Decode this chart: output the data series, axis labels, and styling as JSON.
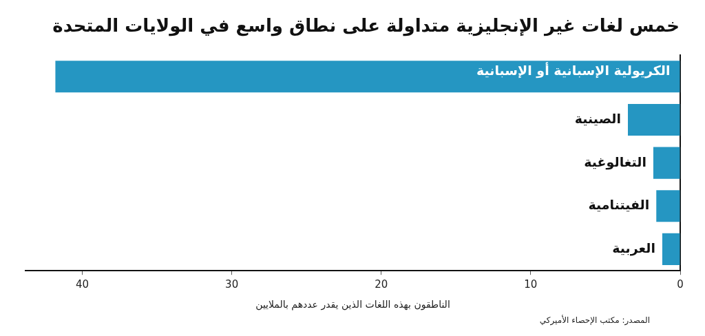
{
  "chart_data": {
    "type": "bar",
    "orientation": "horizontal",
    "title": "خمس لغات غير الإنجليزية متداولة على نطاق واسع في الولايات المتحدة",
    "xlabel": "الناطقون بهذه اللغات الذين يقدر عددهم بالملايين",
    "annotations": [
      "المصدر: مكتب الإحصاء الأميركي"
    ],
    "categories": [
      "الكريولية الإسبانية أو الإسبانية",
      "الصينية",
      "التغالوغية",
      "الفيتنامية",
      "العربية"
    ],
    "values": [
      41.8,
      3.5,
      1.8,
      1.6,
      1.2
    ],
    "color": "#2596c2",
    "xlim": [
      43.8,
      0
    ],
    "xticks": [
      0,
      10,
      20,
      30,
      40
    ],
    "grid": false,
    "legend": false
  }
}
